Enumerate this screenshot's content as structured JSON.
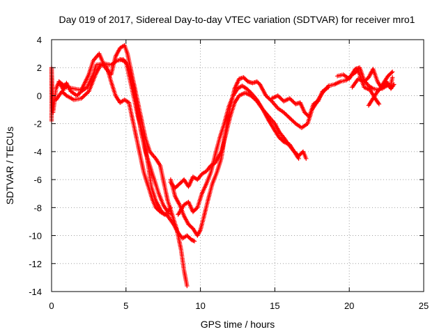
{
  "chart_data": {
    "type": "scatter",
    "title": "Day 019 of 2017, Sidereal Day-to-day VTEC variation (SDTVAR) for receiver mro1",
    "xlabel": "GPS time / hours",
    "ylabel": "SDTVAR / TECUs",
    "xlim": [
      0,
      25
    ],
    "ylim": [
      -14,
      4
    ],
    "xticks": [
      0,
      5,
      10,
      15,
      20,
      25
    ],
    "yticks": [
      -14,
      -12,
      -10,
      -8,
      -6,
      -4,
      -2,
      0,
      2,
      4
    ],
    "grid": true,
    "marker": "plus",
    "series": [
      {
        "name": "",
        "color": "#ff0000",
        "tracks": [
          [
            [
              0.0,
              -1.8
            ],
            [
              0.0,
              2.0
            ],
            [
              0.1,
              -1.2
            ],
            [
              0.3,
              0.5
            ],
            [
              0.5,
              1.0
            ],
            [
              0.8,
              0.4
            ],
            [
              1.0,
              0.9
            ],
            [
              1.3,
              0.3
            ],
            [
              1.7,
              0.0
            ],
            [
              2.0,
              0.3
            ],
            [
              2.4,
              0.6
            ],
            [
              2.8,
              1.5
            ],
            [
              3.0,
              2.2
            ],
            [
              3.5,
              2.3
            ],
            [
              4.0,
              2.2
            ],
            [
              4.4,
              2.5
            ],
            [
              4.8,
              2.6
            ],
            [
              5.1,
              2.2
            ],
            [
              5.4,
              1.2
            ],
            [
              5.7,
              -0.5
            ],
            [
              6.0,
              -2.5
            ],
            [
              6.3,
              -4.0
            ],
            [
              6.6,
              -5.0
            ],
            [
              6.9,
              -6.0
            ],
            [
              7.2,
              -7.0
            ],
            [
              7.5,
              -7.8
            ],
            [
              7.8,
              -8.3
            ],
            [
              8.0,
              -8.0
            ]
          ],
          [
            [
              0.3,
              -0.3
            ],
            [
              0.7,
              0.3
            ],
            [
              1.0,
              0.0
            ],
            [
              1.5,
              -0.3
            ],
            [
              2.0,
              -0.2
            ],
            [
              2.5,
              0.3
            ],
            [
              3.0,
              1.6
            ],
            [
              3.3,
              2.2
            ],
            [
              3.7,
              2.1
            ],
            [
              4.0,
              1.0
            ],
            [
              4.3,
              0.0
            ],
            [
              4.6,
              -0.5
            ],
            [
              4.9,
              -0.3
            ],
            [
              5.2,
              -0.5
            ],
            [
              5.5,
              -2.0
            ],
            [
              5.8,
              -3.5
            ],
            [
              6.0,
              -4.5
            ],
            [
              6.2,
              -5.5
            ],
            [
              6.5,
              -6.5
            ],
            [
              6.8,
              -7.5
            ],
            [
              7.0,
              -8.0
            ],
            [
              7.3,
              -8.3
            ],
            [
              7.6,
              -8.5
            ],
            [
              8.0,
              -8.4
            ]
          ],
          [
            [
              0.5,
              1.0
            ],
            [
              1.0,
              0.6
            ],
            [
              2.0,
              0.4
            ],
            [
              2.5,
              1.5
            ],
            [
              2.8,
              2.5
            ],
            [
              3.2,
              3.0
            ],
            [
              3.6,
              2.0
            ],
            [
              4.0,
              1.5
            ],
            [
              4.3,
              2.8
            ],
            [
              4.6,
              3.4
            ],
            [
              4.9,
              3.6
            ],
            [
              5.1,
              3.0
            ],
            [
              5.4,
              1.5
            ],
            [
              5.7,
              0.0
            ],
            [
              6.0,
              -1.5
            ],
            [
              6.3,
              -3.0
            ],
            [
              6.6,
              -4.0
            ],
            [
              7.0,
              -4.5
            ],
            [
              7.3,
              -5.0
            ],
            [
              7.5,
              -6.0
            ],
            [
              7.8,
              -7.5
            ],
            [
              8.1,
              -8.5
            ],
            [
              8.4,
              -9.5
            ],
            [
              8.7,
              -11.0
            ],
            [
              8.9,
              -12.5
            ],
            [
              9.1,
              -13.6
            ]
          ],
          [
            [
              4.6,
              2.6
            ],
            [
              5.0,
              2.4
            ],
            [
              5.4,
              0.5
            ],
            [
              5.8,
              -1.5
            ],
            [
              6.2,
              -3.0
            ],
            [
              6.5,
              -5.0
            ],
            [
              6.7,
              -6.5
            ],
            [
              7.0,
              -7.5
            ],
            [
              7.4,
              -8.3
            ],
            [
              7.8,
              -8.6
            ],
            [
              8.2,
              -9.2
            ],
            [
              8.5,
              -9.8
            ],
            [
              8.8,
              -10.2
            ],
            [
              9.1,
              -10.0
            ],
            [
              9.4,
              -10.3
            ],
            [
              9.6,
              -10.4
            ]
          ],
          [
            [
              8.0,
              -6.0
            ],
            [
              8.3,
              -7.2
            ],
            [
              8.6,
              -7.8
            ],
            [
              8.9,
              -8.6
            ],
            [
              9.2,
              -9.2
            ],
            [
              9.5,
              -9.5
            ],
            [
              9.8,
              -10.0
            ],
            [
              10.0,
              -9.6
            ],
            [
              10.2,
              -8.8
            ],
            [
              10.5,
              -7.5
            ],
            [
              10.8,
              -6.3
            ],
            [
              11.1,
              -5.5
            ],
            [
              11.4,
              -4.5
            ],
            [
              11.7,
              -2.5
            ],
            [
              12.0,
              -0.8
            ],
            [
              12.3,
              0.5
            ],
            [
              12.6,
              1.2
            ],
            [
              12.9,
              1.3
            ],
            [
              13.2,
              1.0
            ],
            [
              13.5,
              0.9
            ],
            [
              13.8,
              1.0
            ],
            [
              14.0,
              0.8
            ],
            [
              14.4,
              0.0
            ],
            [
              14.8,
              -0.4
            ],
            [
              15.2,
              -0.9
            ],
            [
              15.6,
              -1.2
            ],
            [
              16.0,
              -1.6
            ],
            [
              16.4,
              -2.0
            ],
            [
              16.8,
              -2.3
            ],
            [
              17.2,
              -2.0
            ],
            [
              17.5,
              -1.0
            ],
            [
              17.8,
              -0.5
            ],
            [
              18.2,
              0.2
            ],
            [
              18.6,
              0.7
            ],
            [
              19.0,
              0.8
            ],
            [
              19.4,
              1.0
            ],
            [
              19.8,
              1.1
            ],
            [
              20.2,
              1.5
            ],
            [
              20.6,
              1.8
            ],
            [
              21.0,
              0.6
            ],
            [
              21.4,
              0.4
            ],
            [
              21.8,
              -0.3
            ],
            [
              22.0,
              -0.6
            ]
          ],
          [
            [
              8.0,
              -6.2
            ],
            [
              8.3,
              -6.6
            ],
            [
              8.6,
              -6.3
            ],
            [
              8.9,
              -6.0
            ],
            [
              9.2,
              -6.5
            ],
            [
              9.5,
              -5.8
            ],
            [
              9.8,
              -6.0
            ],
            [
              10.1,
              -5.6
            ],
            [
              10.4,
              -5.4
            ],
            [
              10.7,
              -5.0
            ],
            [
              11.0,
              -4.8
            ],
            [
              11.4,
              -4.0
            ],
            [
              11.7,
              -2.8
            ],
            [
              12.0,
              -1.5
            ],
            [
              12.3,
              -0.5
            ],
            [
              12.6,
              0.0
            ],
            [
              13.0,
              0.2
            ],
            [
              13.4,
              0.0
            ],
            [
              13.8,
              -0.4
            ],
            [
              14.2,
              -1.0
            ],
            [
              14.6,
              -1.5
            ],
            [
              15.0,
              -2.0
            ],
            [
              15.3,
              -2.6
            ],
            [
              15.6,
              -3.0
            ],
            [
              16.0,
              -3.6
            ],
            [
              16.3,
              -4.0
            ],
            [
              16.6,
              -4.3
            ],
            [
              16.9,
              -4.0
            ],
            [
              17.1,
              -4.5
            ]
          ],
          [
            [
              8.5,
              -8.5
            ],
            [
              8.9,
              -7.8
            ],
            [
              9.2,
              -7.6
            ],
            [
              9.5,
              -8.3
            ],
            [
              9.8,
              -8.0
            ],
            [
              10.1,
              -7.0
            ],
            [
              10.4,
              -6.3
            ],
            [
              10.7,
              -5.5
            ],
            [
              11.0,
              -4.2
            ],
            [
              11.3,
              -3.0
            ],
            [
              11.6,
              -2.0
            ],
            [
              11.9,
              -0.8
            ],
            [
              12.2,
              0.0
            ],
            [
              12.5,
              0.5
            ],
            [
              12.8,
              0.7
            ],
            [
              13.1,
              0.5
            ],
            [
              13.4,
              0.2
            ],
            [
              13.8,
              -0.3
            ],
            [
              14.2,
              -1.0
            ],
            [
              14.6,
              -1.8
            ],
            [
              15.0,
              -2.5
            ],
            [
              15.3,
              -3.0
            ],
            [
              15.6,
              -3.3
            ],
            [
              16.0,
              -3.5
            ],
            [
              16.3,
              -4.0
            ],
            [
              16.6,
              -4.5
            ]
          ],
          [
            [
              14.8,
              -0.2
            ],
            [
              15.2,
              0.0
            ],
            [
              15.6,
              -0.4
            ],
            [
              16.0,
              -0.2
            ],
            [
              16.4,
              -0.6
            ],
            [
              16.7,
              -0.5
            ],
            [
              17.0,
              -1.2
            ],
            [
              17.3,
              -1.5
            ],
            [
              17.6,
              -0.6
            ],
            [
              17.9,
              -0.4
            ],
            [
              18.2,
              0.3
            ],
            [
              18.6,
              0.6
            ]
          ],
          [
            [
              19.2,
              1.4
            ],
            [
              19.6,
              1.5
            ],
            [
              20.0,
              1.2
            ],
            [
              20.4,
              1.9
            ],
            [
              20.7,
              2.0
            ],
            [
              21.0,
              1.1
            ],
            [
              21.3,
              0.7
            ],
            [
              21.6,
              0.5
            ],
            [
              22.0,
              0.4
            ],
            [
              22.3,
              0.9
            ],
            [
              22.6,
              1.4
            ],
            [
              22.9,
              1.7
            ]
          ],
          [
            [
              20.2,
              0.6
            ],
            [
              20.6,
              1.2
            ],
            [
              21.0,
              1.0
            ],
            [
              21.3,
              1.3
            ],
            [
              21.6,
              1.9
            ],
            [
              21.9,
              1.0
            ],
            [
              22.2,
              0.5
            ],
            [
              22.5,
              0.7
            ],
            [
              22.8,
              0.8
            ],
            [
              22.9,
              1.3
            ]
          ],
          [
            [
              21.3,
              -0.7
            ],
            [
              21.6,
              -0.2
            ],
            [
              21.9,
              0.3
            ],
            [
              22.2,
              0.6
            ],
            [
              22.5,
              1.0
            ],
            [
              22.8,
              0.5
            ],
            [
              23.0,
              0.8
            ]
          ]
        ]
      }
    ]
  }
}
